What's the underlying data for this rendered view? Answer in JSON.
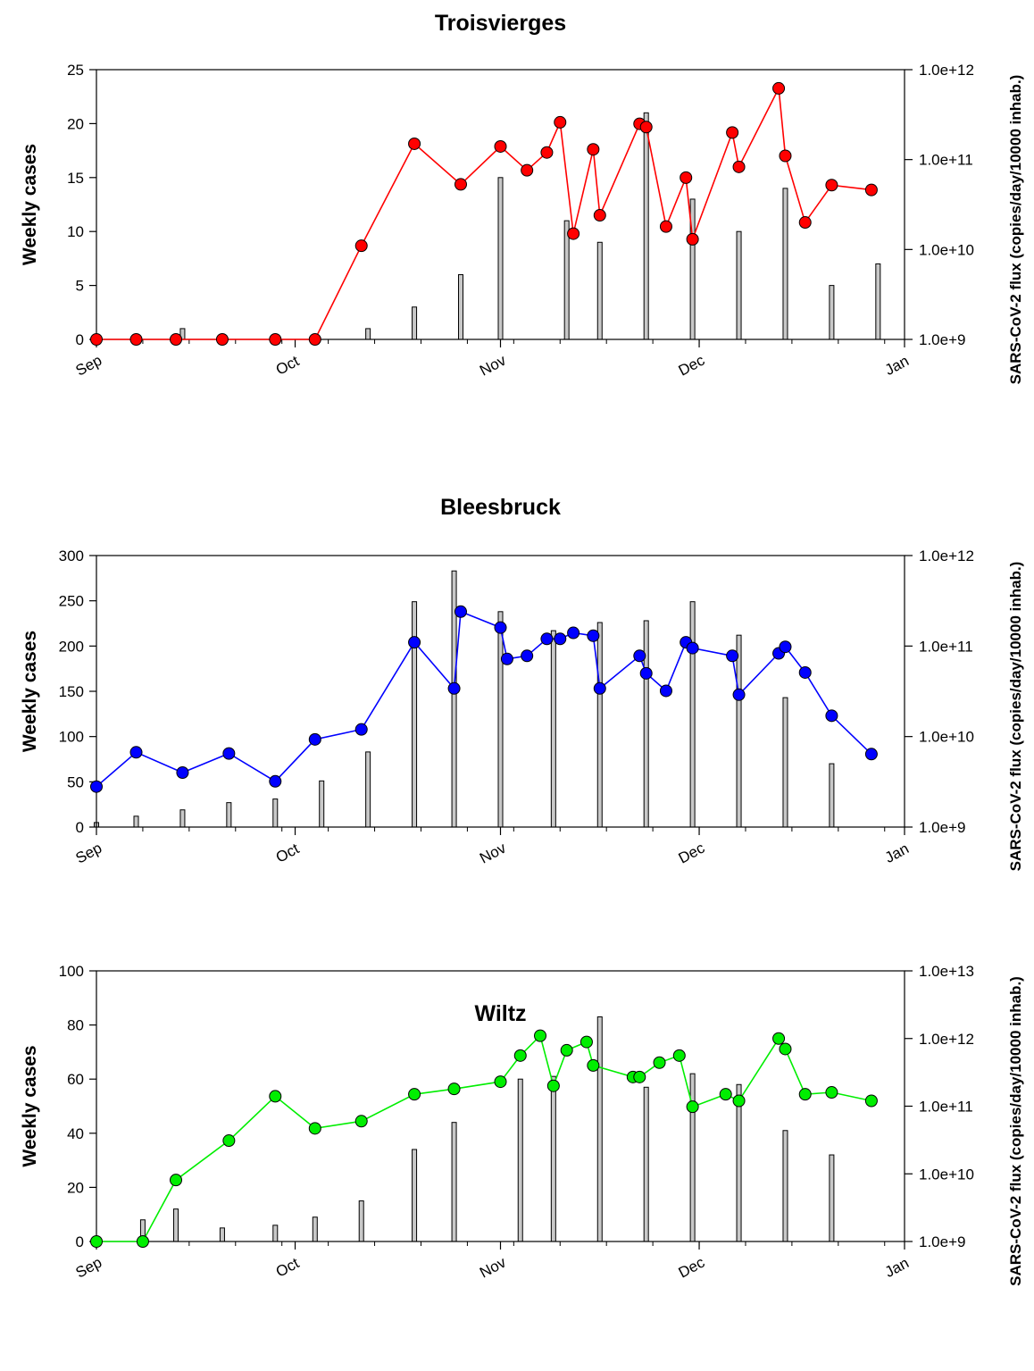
{
  "chart_data": [
    {
      "type": "bar+line",
      "title": "Troisvierges",
      "ylabel": "Weekly cases",
      "y2label": "SARS-CoV-2 flux (copies/day/10000 inhab.)",
      "ylim": [
        0,
        25
      ],
      "yticks": [
        "0",
        "5",
        "10",
        "15",
        "20",
        "25"
      ],
      "y2scale": "log",
      "y2lim": [
        1000000000.0,
        1000000000000.0
      ],
      "y2ticks": [
        "1.0e+9",
        "1.0e+10",
        "1.0e+11",
        "1.0e+12"
      ],
      "xlim": [
        "2020-09-01",
        "2021-01-01"
      ],
      "xticks": [
        "Sep",
        "Oct",
        "Nov",
        "Dec",
        "Jan"
      ],
      "line_color": "#ff0000",
      "bars": [
        {
          "x": "2020-09-14",
          "y": 1
        },
        {
          "x": "2020-10-12",
          "y": 1
        },
        {
          "x": "2020-10-19",
          "y": 3
        },
        {
          "x": "2020-10-26",
          "y": 6
        },
        {
          "x": "2020-11-01",
          "y": 15
        },
        {
          "x": "2020-11-11",
          "y": 11
        },
        {
          "x": "2020-11-16",
          "y": 9
        },
        {
          "x": "2020-11-23",
          "y": 21
        },
        {
          "x": "2020-11-30",
          "y": 13
        },
        {
          "x": "2020-12-07",
          "y": 10
        },
        {
          "x": "2020-12-14",
          "y": 14
        },
        {
          "x": "2020-12-21",
          "y": 5
        },
        {
          "x": "2020-12-28",
          "y": 7
        }
      ],
      "flux": [
        {
          "x": "2020-09-01",
          "y": 1000000000.0
        },
        {
          "x": "2020-09-07",
          "y": 1000000000.0
        },
        {
          "x": "2020-09-13",
          "y": 1000000000.0
        },
        {
          "x": "2020-09-20",
          "y": 1000000000.0
        },
        {
          "x": "2020-09-28",
          "y": 1000000000.0
        },
        {
          "x": "2020-10-04",
          "y": 1000000000.0
        },
        {
          "x": "2020-10-11",
          "y": 11000000000.0
        },
        {
          "x": "2020-10-19",
          "y": 150000000000.0
        },
        {
          "x": "2020-10-26",
          "y": 53000000000.0
        },
        {
          "x": "2020-11-01",
          "y": 140000000000.0
        },
        {
          "x": "2020-11-05",
          "y": 76000000000.0
        },
        {
          "x": "2020-11-08",
          "y": 120000000000.0
        },
        {
          "x": "2020-11-10",
          "y": 260000000000.0
        },
        {
          "x": "2020-11-12",
          "y": 15000000000.0
        },
        {
          "x": "2020-11-15",
          "y": 130000000000.0
        },
        {
          "x": "2020-11-16",
          "y": 24000000000.0
        },
        {
          "x": "2020-11-22",
          "y": 250000000000.0
        },
        {
          "x": "2020-11-23",
          "y": 230000000000.0
        },
        {
          "x": "2020-11-26",
          "y": 18000000000.0
        },
        {
          "x": "2020-11-29",
          "y": 63000000000.0
        },
        {
          "x": "2020-11-30",
          "y": 13000000000.0
        },
        {
          "x": "2020-12-06",
          "y": 200000000000.0
        },
        {
          "x": "2020-12-07",
          "y": 83000000000.0
        },
        {
          "x": "2020-12-13",
          "y": 620000000000.0
        },
        {
          "x": "2020-12-14",
          "y": 110000000000.0
        },
        {
          "x": "2020-12-17",
          "y": 20000000000.0
        },
        {
          "x": "2020-12-21",
          "y": 52000000000.0
        },
        {
          "x": "2020-12-27",
          "y": 46000000000.0
        }
      ]
    },
    {
      "type": "bar+line",
      "title": "Bleesbruck",
      "ylabel": "Weekly cases",
      "y2label": "SARS-CoV-2 flux (copies/day/10000 inhab.)",
      "ylim": [
        0,
        300
      ],
      "yticks": [
        "0",
        "50",
        "100",
        "150",
        "200",
        "250",
        "300"
      ],
      "y2scale": "log",
      "y2lim": [
        1000000000.0,
        1000000000000.0
      ],
      "y2ticks": [
        "1.0e+9",
        "1.0e+10",
        "1.0e+11",
        "1.0e+12"
      ],
      "xlim": [
        "2020-09-01",
        "2021-01-01"
      ],
      "xticks": [
        "Sep",
        "Oct",
        "Nov",
        "Dec",
        "Jan"
      ],
      "line_color": "#0000ff",
      "bars": [
        {
          "x": "2020-09-01",
          "y": 5
        },
        {
          "x": "2020-09-07",
          "y": 12
        },
        {
          "x": "2020-09-14",
          "y": 19
        },
        {
          "x": "2020-09-21",
          "y": 27
        },
        {
          "x": "2020-09-28",
          "y": 31
        },
        {
          "x": "2020-10-05",
          "y": 51
        },
        {
          "x": "2020-10-12",
          "y": 83
        },
        {
          "x": "2020-10-19",
          "y": 249
        },
        {
          "x": "2020-10-25",
          "y": 283
        },
        {
          "x": "2020-11-01",
          "y": 238
        },
        {
          "x": "2020-11-09",
          "y": 217
        },
        {
          "x": "2020-11-16",
          "y": 226
        },
        {
          "x": "2020-11-23",
          "y": 228
        },
        {
          "x": "2020-11-30",
          "y": 249
        },
        {
          "x": "2020-12-07",
          "y": 212
        },
        {
          "x": "2020-12-14",
          "y": 143
        },
        {
          "x": "2020-12-21",
          "y": 70
        }
      ],
      "flux": [
        {
          "x": "2020-09-01",
          "y": 2800000000.0
        },
        {
          "x": "2020-09-07",
          "y": 6700000000.0
        },
        {
          "x": "2020-09-14",
          "y": 4000000000.0
        },
        {
          "x": "2020-09-21",
          "y": 6500000000.0
        },
        {
          "x": "2020-09-28",
          "y": 3200000000.0
        },
        {
          "x": "2020-10-04",
          "y": 9300000000.0
        },
        {
          "x": "2020-10-11",
          "y": 12000000000.0
        },
        {
          "x": "2020-10-19",
          "y": 110000000000.0
        },
        {
          "x": "2020-10-25",
          "y": 34000000000.0
        },
        {
          "x": "2020-10-26",
          "y": 240000000000.0
        },
        {
          "x": "2020-11-01",
          "y": 160000000000.0
        },
        {
          "x": "2020-11-02",
          "y": 72000000000.0
        },
        {
          "x": "2020-11-05",
          "y": 78000000000.0
        },
        {
          "x": "2020-11-08",
          "y": 120000000000.0
        },
        {
          "x": "2020-11-10",
          "y": 120000000000.0
        },
        {
          "x": "2020-11-12",
          "y": 140000000000.0
        },
        {
          "x": "2020-11-15",
          "y": 130000000000.0
        },
        {
          "x": "2020-11-16",
          "y": 34000000000.0
        },
        {
          "x": "2020-11-22",
          "y": 78000000000.0
        },
        {
          "x": "2020-11-23",
          "y": 50000000000.0
        },
        {
          "x": "2020-11-26",
          "y": 32000000000.0
        },
        {
          "x": "2020-11-29",
          "y": 110000000000.0
        },
        {
          "x": "2020-11-30",
          "y": 95000000000.0
        },
        {
          "x": "2020-12-06",
          "y": 78000000000.0
        },
        {
          "x": "2020-12-07",
          "y": 29000000000.0
        },
        {
          "x": "2020-12-13",
          "y": 83000000000.0
        },
        {
          "x": "2020-12-14",
          "y": 98000000000.0
        },
        {
          "x": "2020-12-17",
          "y": 51000000000.0
        },
        {
          "x": "2020-12-21",
          "y": 17000000000.0
        },
        {
          "x": "2020-12-27",
          "y": 6400000000.0
        }
      ]
    },
    {
      "type": "bar+line",
      "title": "Wiltz",
      "ylabel": "Weekly cases",
      "y2label": "SARS-CoV-2 flux (copies/day/10000 inhab.)",
      "ylim": [
        0,
        100
      ],
      "yticks": [
        "0",
        "20",
        "40",
        "60",
        "80",
        "100"
      ],
      "y2scale": "log",
      "y2lim": [
        1000000000.0,
        10000000000000.0
      ],
      "y2ticks": [
        "1.0e+9",
        "1.0e+10",
        "1.0e+11",
        "1.0e+12",
        "1.0e+13"
      ],
      "xlim": [
        "2020-09-01",
        "2021-01-01"
      ],
      "xticks": [
        "Sep",
        "Oct",
        "Nov",
        "Dec",
        "Jan"
      ],
      "line_color": "#00ee00",
      "bars": [
        {
          "x": "2020-09-08",
          "y": 8
        },
        {
          "x": "2020-09-13",
          "y": 12
        },
        {
          "x": "2020-09-20",
          "y": 5
        },
        {
          "x": "2020-09-28",
          "y": 6
        },
        {
          "x": "2020-10-04",
          "y": 9
        },
        {
          "x": "2020-10-11",
          "y": 15
        },
        {
          "x": "2020-10-19",
          "y": 34
        },
        {
          "x": "2020-10-25",
          "y": 44
        },
        {
          "x": "2020-11-04",
          "y": 60
        },
        {
          "x": "2020-11-09",
          "y": 61
        },
        {
          "x": "2020-11-16",
          "y": 83
        },
        {
          "x": "2020-11-23",
          "y": 57
        },
        {
          "x": "2020-11-30",
          "y": 62
        },
        {
          "x": "2020-12-07",
          "y": 58
        },
        {
          "x": "2020-12-14",
          "y": 41
        },
        {
          "x": "2020-12-21",
          "y": 32
        }
      ],
      "flux": [
        {
          "x": "2020-09-01",
          "y": 1000000000.0
        },
        {
          "x": "2020-09-08",
          "y": 1000000000.0
        },
        {
          "x": "2020-09-13",
          "y": 8100000000.0
        },
        {
          "x": "2020-09-21",
          "y": 31000000000.0
        },
        {
          "x": "2020-09-28",
          "y": 140000000000.0
        },
        {
          "x": "2020-10-04",
          "y": 47000000000.0
        },
        {
          "x": "2020-10-11",
          "y": 60000000000.0
        },
        {
          "x": "2020-10-19",
          "y": 150000000000.0
        },
        {
          "x": "2020-10-25",
          "y": 180000000000.0
        },
        {
          "x": "2020-11-01",
          "y": 230000000000.0
        },
        {
          "x": "2020-11-04",
          "y": 560000000000.0
        },
        {
          "x": "2020-11-07",
          "y": 1100000000000.0
        },
        {
          "x": "2020-11-09",
          "y": 200000000000.0
        },
        {
          "x": "2020-11-11",
          "y": 670000000000.0
        },
        {
          "x": "2020-11-14",
          "y": 890000000000.0
        },
        {
          "x": "2020-11-15",
          "y": 400000000000.0
        },
        {
          "x": "2020-11-21",
          "y": 270000000000.0
        },
        {
          "x": "2020-11-22",
          "y": 270000000000.0
        },
        {
          "x": "2020-11-25",
          "y": 440000000000.0
        },
        {
          "x": "2020-11-28",
          "y": 560000000000.0
        },
        {
          "x": "2020-11-30",
          "y": 98000000000.0
        },
        {
          "x": "2020-12-05",
          "y": 150000000000.0
        },
        {
          "x": "2020-12-07",
          "y": 120000000000.0
        },
        {
          "x": "2020-12-13",
          "y": 1000000000000.0
        },
        {
          "x": "2020-12-14",
          "y": 700000000000.0
        },
        {
          "x": "2020-12-17",
          "y": 150000000000.0
        },
        {
          "x": "2020-12-21",
          "y": 160000000000.0
        },
        {
          "x": "2020-12-27",
          "y": 120000000000.0
        }
      ]
    }
  ]
}
